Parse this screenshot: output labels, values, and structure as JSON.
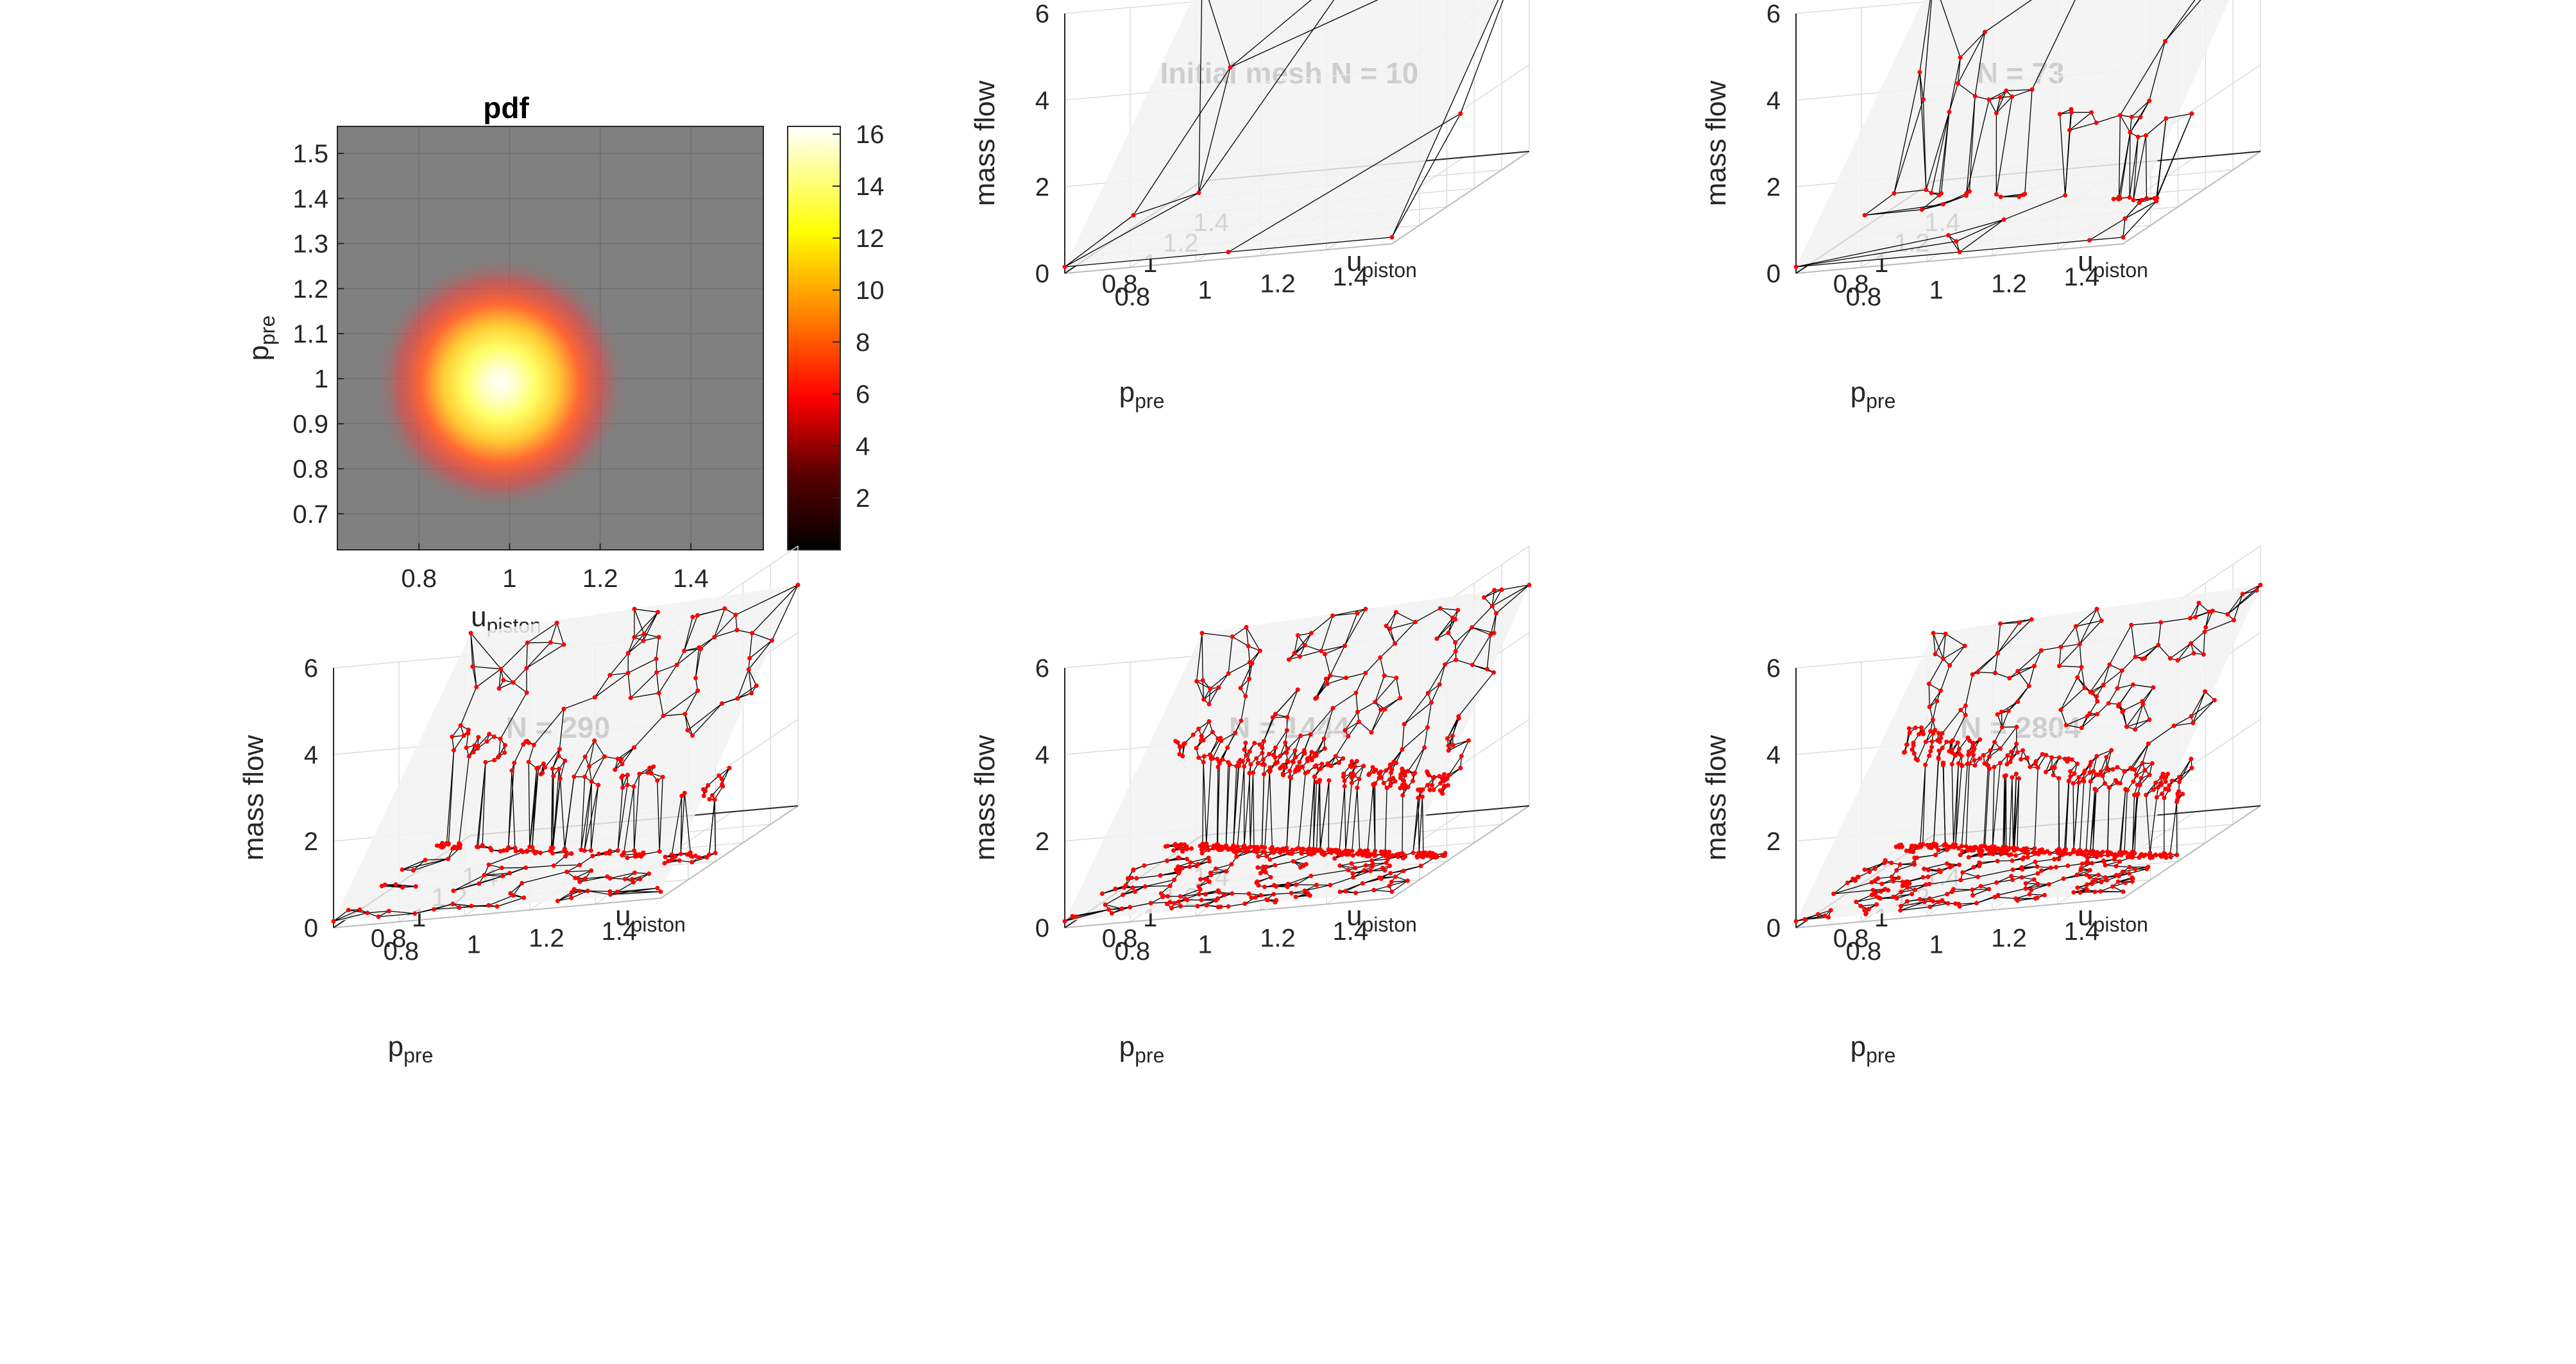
{
  "chart_data": [
    {
      "type": "heatmap",
      "title": "pdf",
      "xlabel": {
        "main": "u",
        "sub": "piston"
      },
      "ylabel": {
        "main": "p",
        "sub": "pre"
      },
      "xlim": [
        0.62,
        1.56
      ],
      "ylim": [
        0.62,
        1.56
      ],
      "x_ticks": [
        "0.8",
        "1",
        "1.2",
        "1.4"
      ],
      "y_ticks": [
        "0.7",
        "0.8",
        "0.9",
        "1",
        "1.1",
        "1.2",
        "1.3",
        "1.4",
        "1.5"
      ],
      "peak_center": [
        0.98,
        0.99
      ],
      "colorbar": {
        "ticks": [
          "2",
          "4",
          "6",
          "8",
          "10",
          "12",
          "14",
          "16"
        ],
        "range": [
          0,
          16.3
        ]
      },
      "background_color": "#808080"
    },
    {
      "type": "surface",
      "title": "Initial mesh N = 10",
      "num_points": 10,
      "zlabel": "mass flow",
      "xlabel": {
        "main": "u",
        "sub": "piston"
      },
      "ylabel": {
        "main": "p",
        "sub": "pre"
      },
      "z_ticks": [
        "0",
        "2",
        "4",
        "6"
      ],
      "u_ticks": [
        "0.8",
        "1",
        "1.2",
        "1.4"
      ],
      "p_ticks": [
        "0.8",
        "1",
        "1.2",
        "1.4"
      ]
    },
    {
      "type": "surface",
      "title": "N = 73",
      "num_points": 73,
      "zlabel": "mass flow",
      "xlabel": {
        "main": "u",
        "sub": "piston"
      },
      "ylabel": {
        "main": "p",
        "sub": "pre"
      },
      "z_ticks": [
        "0",
        "2",
        "4",
        "6"
      ],
      "u_ticks": [
        "0.8",
        "1",
        "1.2",
        "1.4"
      ],
      "p_ticks": [
        "0.8",
        "1",
        "1.2",
        "1.4"
      ]
    },
    {
      "type": "surface",
      "title": "N = 290",
      "num_points": 290,
      "zlabel": "mass flow",
      "xlabel": {
        "main": "u",
        "sub": "piston"
      },
      "ylabel": {
        "main": "p",
        "sub": "pre"
      },
      "z_ticks": [
        "0",
        "2",
        "4",
        "6"
      ],
      "u_ticks": [
        "0.8",
        "1",
        "1.2",
        "1.4"
      ],
      "p_ticks": [
        "0.8",
        "1",
        "1.2",
        "1.4"
      ]
    },
    {
      "type": "surface",
      "title": "N = 1444",
      "num_points": 1444,
      "zlabel": "mass flow",
      "xlabel": {
        "main": "u",
        "sub": "piston"
      },
      "ylabel": {
        "main": "p",
        "sub": "pre"
      },
      "z_ticks": [
        "0",
        "2",
        "4",
        "6"
      ],
      "u_ticks": [
        "0.8",
        "1",
        "1.2",
        "1.4"
      ],
      "p_ticks": [
        "0.8",
        "1",
        "1.2",
        "1.4"
      ]
    },
    {
      "type": "surface",
      "title": "N = 2804",
      "num_points": 2804,
      "zlabel": "mass flow",
      "xlabel": {
        "main": "u",
        "sub": "piston"
      },
      "ylabel": {
        "main": "p",
        "sub": "pre"
      },
      "z_ticks": [
        "0",
        "2",
        "4",
        "6"
      ],
      "u_ticks": [
        "0.8",
        "1",
        "1.2",
        "1.4"
      ],
      "p_ticks": [
        "0.8",
        "1",
        "1.2",
        "1.4"
      ]
    }
  ],
  "colors": {
    "mesh_line": "#000000",
    "mesh_node": "#ff0000",
    "surface_fill": "#f2f2f2",
    "axis": "#262626",
    "grid": "#dcdcdc"
  }
}
